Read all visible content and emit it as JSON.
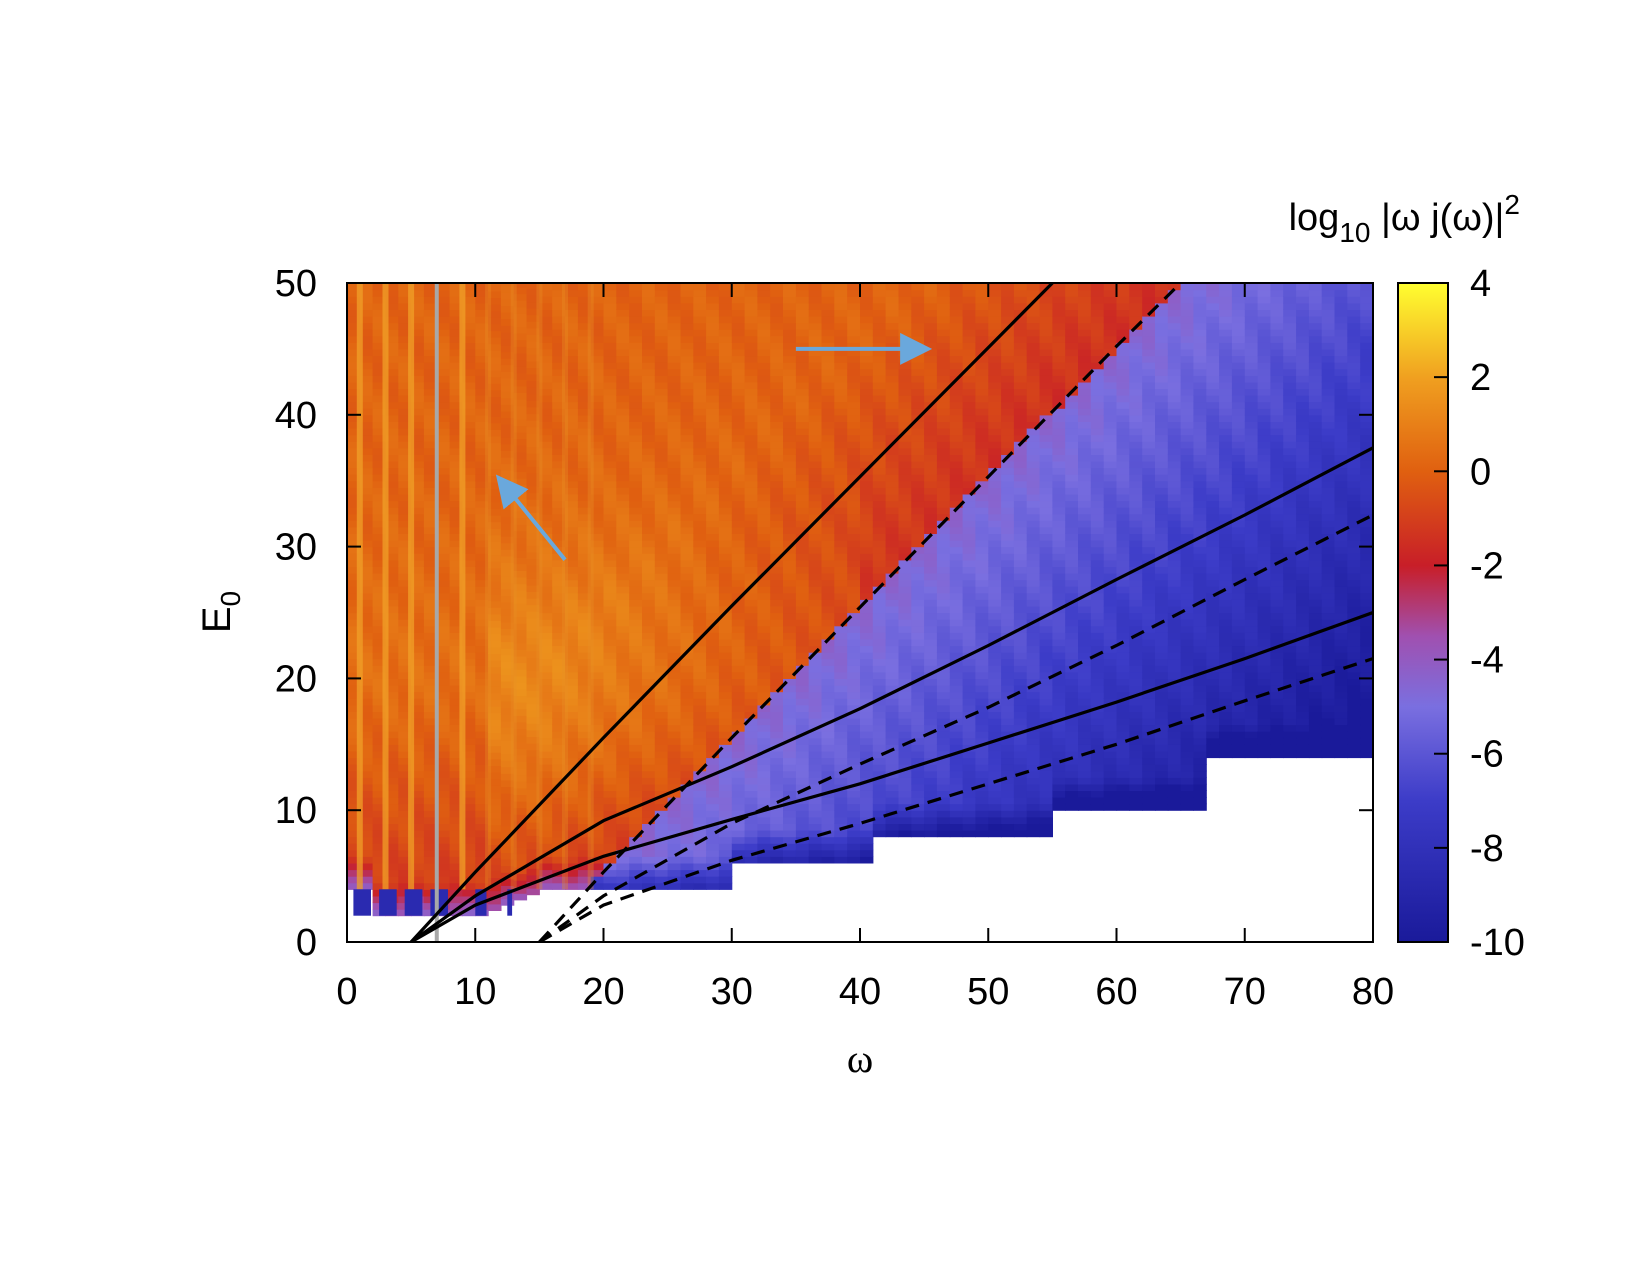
{
  "chart_data": {
    "type": "heatmap",
    "title": "",
    "xlabel": "ω",
    "ylabel_main": "E",
    "ylabel_sub": "0",
    "xlim": [
      0,
      80
    ],
    "ylim": [
      0,
      50
    ],
    "x_ticks": [
      0,
      10,
      20,
      30,
      40,
      50,
      60,
      70,
      80
    ],
    "y_ticks": [
      0,
      10,
      20,
      30,
      40,
      50
    ],
    "colorbar": {
      "title_parts": [
        "log",
        "10",
        " |ω j(ω)|",
        "2"
      ],
      "range": [
        -10,
        4
      ],
      "ticks": [
        4,
        2,
        0,
        -2,
        -4,
        -6,
        -8,
        -10
      ],
      "colors": [
        {
          "value": -10,
          "color": "#1a1a9a"
        },
        {
          "value": -7,
          "color": "#3c3cc8"
        },
        {
          "value": -5,
          "color": "#7a6fe0"
        },
        {
          "value": -3.5,
          "color": "#a050b0"
        },
        {
          "value": -2,
          "color": "#c81e28"
        },
        {
          "value": 0,
          "color": "#e06010"
        },
        {
          "value": 2,
          "color": "#f0a020"
        },
        {
          "value": 4,
          "color": "#ffff30"
        }
      ]
    },
    "vertical_line": {
      "x": 7,
      "color": "#a8a8a8"
    },
    "solid_curves": [
      [
        [
          5,
          0
        ],
        [
          10,
          5.3
        ],
        [
          20,
          15.5
        ],
        [
          30,
          25.5
        ],
        [
          40,
          35.3
        ],
        [
          50,
          45.1
        ],
        [
          55,
          50
        ]
      ],
      [
        [
          5,
          0
        ],
        [
          10,
          3.5
        ],
        [
          20,
          9.2
        ],
        [
          30,
          13.3
        ],
        [
          40,
          17.7
        ],
        [
          50,
          22.5
        ],
        [
          60,
          27.5
        ],
        [
          70,
          32.4
        ],
        [
          80,
          37.5
        ]
      ],
      [
        [
          5,
          0
        ],
        [
          10,
          2.8
        ],
        [
          20,
          6.5
        ],
        [
          30,
          9.3
        ],
        [
          40,
          12
        ],
        [
          50,
          15.1
        ],
        [
          60,
          18.2
        ],
        [
          70,
          21.5
        ],
        [
          80,
          25
        ]
      ]
    ],
    "dashed_curves": [
      [
        [
          15,
          0
        ],
        [
          20,
          5.3
        ],
        [
          30,
          15.5
        ],
        [
          40,
          25.4
        ],
        [
          50,
          35.3
        ],
        [
          60,
          45.2
        ],
        [
          65,
          50
        ]
      ],
      [
        [
          15,
          0
        ],
        [
          20,
          3.5
        ],
        [
          30,
          9
        ],
        [
          40,
          13.5
        ],
        [
          50,
          17.8
        ],
        [
          60,
          22.5
        ],
        [
          70,
          27.5
        ],
        [
          80,
          32.4
        ]
      ],
      [
        [
          15,
          0
        ],
        [
          20,
          2.8
        ],
        [
          30,
          6.2
        ],
        [
          40,
          9
        ],
        [
          50,
          12
        ],
        [
          60,
          15
        ],
        [
          70,
          18.3
        ],
        [
          80,
          21.5
        ]
      ]
    ],
    "arrows": [
      {
        "from": [
          17,
          29
        ],
        "to": [
          12,
          35
        ],
        "color": "#6aa8dc"
      },
      {
        "from": [
          35,
          45
        ],
        "to": [
          45,
          45
        ],
        "color": "#6aa8dc"
      }
    ]
  }
}
